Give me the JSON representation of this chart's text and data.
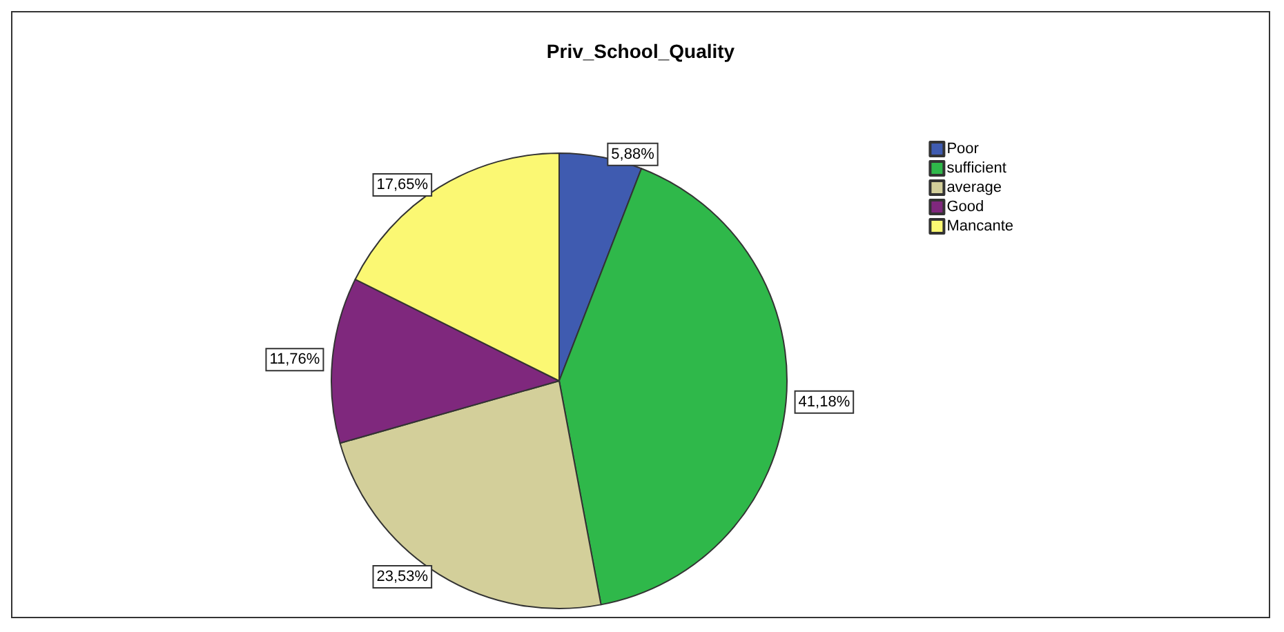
{
  "chart_data": {
    "type": "pie",
    "title": "Priv_School_Quality",
    "categories": [
      "Poor",
      "sufficient",
      "average",
      "Good",
      "Mancante"
    ],
    "values": [
      5.88,
      41.18,
      23.53,
      11.76,
      17.65
    ],
    "value_labels": [
      "5,88%",
      "41,18%",
      "23,53%",
      "11,76%",
      "17,65%"
    ],
    "colors": [
      "#3f5bb0",
      "#2fb84a",
      "#d3cf9a",
      "#7f287d",
      "#fbf873"
    ],
    "legend": "top right"
  }
}
